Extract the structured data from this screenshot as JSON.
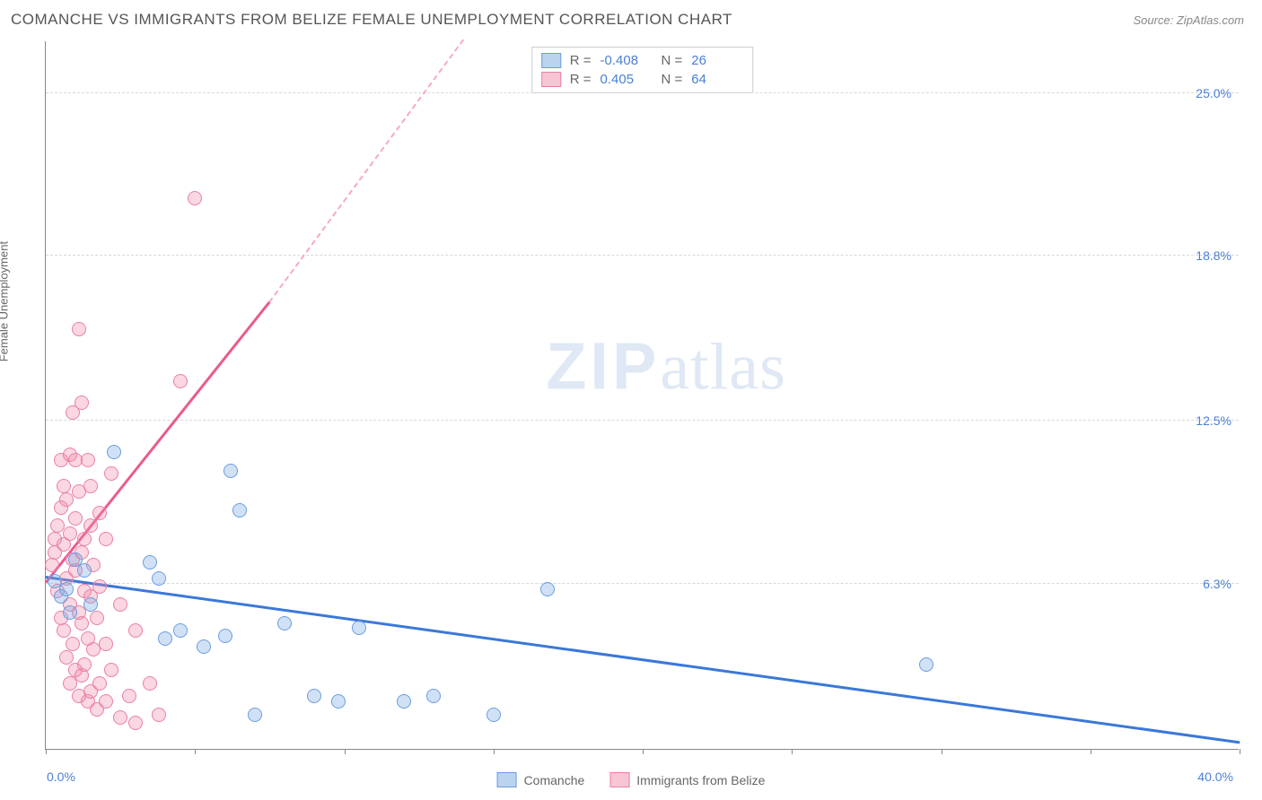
{
  "header": {
    "title": "COMANCHE VS IMMIGRANTS FROM BELIZE FEMALE UNEMPLOYMENT CORRELATION CHART",
    "source": "Source: ZipAtlas.com"
  },
  "chart": {
    "type": "scatter",
    "ylabel": "Female Unemployment",
    "xlim": [
      0,
      40
    ],
    "ylim": [
      0,
      27
    ],
    "x_ticks": [
      0,
      5,
      10,
      15,
      20,
      25,
      30,
      35,
      40
    ],
    "y_gridlines": [
      6.3,
      12.5,
      18.8,
      25.0
    ],
    "y_tick_labels": [
      "6.3%",
      "12.5%",
      "18.8%",
      "25.0%"
    ],
    "x_left_label": "0.0%",
    "x_right_label": "40.0%",
    "background_color": "#ffffff",
    "grid_color": "#d8d8d8",
    "axis_color": "#888888",
    "watermark": "ZIPatlas",
    "series": [
      {
        "name": "Comanche",
        "color_fill": "rgba(122,168,226,0.35)",
        "color_stroke": "#6a9de0",
        "reg_color": "#3a78d8",
        "R": "-0.408",
        "N": "26",
        "regression": {
          "x1": 0,
          "y1": 6.5,
          "x2": 40,
          "y2": 0.2
        },
        "points": [
          [
            0.3,
            6.4
          ],
          [
            0.5,
            5.8
          ],
          [
            0.7,
            6.1
          ],
          [
            0.8,
            5.2
          ],
          [
            1.0,
            7.2
          ],
          [
            1.3,
            6.8
          ],
          [
            1.5,
            5.5
          ],
          [
            2.3,
            11.3
          ],
          [
            3.5,
            7.1
          ],
          [
            3.8,
            6.5
          ],
          [
            4.0,
            4.2
          ],
          [
            4.5,
            4.5
          ],
          [
            5.3,
            3.9
          ],
          [
            6.2,
            10.6
          ],
          [
            6.0,
            4.3
          ],
          [
            6.5,
            9.1
          ],
          [
            7.0,
            1.3
          ],
          [
            8.0,
            4.8
          ],
          [
            9.0,
            2.0
          ],
          [
            9.8,
            1.8
          ],
          [
            10.5,
            4.6
          ],
          [
            12.0,
            1.8
          ],
          [
            13.0,
            2.0
          ],
          [
            15.0,
            1.3
          ],
          [
            16.8,
            6.1
          ],
          [
            29.5,
            3.2
          ]
        ]
      },
      {
        "name": "Immigrants from Belize",
        "color_fill": "rgba(240,140,170,0.35)",
        "color_stroke": "#ea7fa6",
        "reg_color": "#ea5a8f",
        "R": "0.405",
        "N": "64",
        "regression": {
          "x1": 0,
          "y1": 6.3,
          "x2": 7.5,
          "y2": 17.0
        },
        "regression_ext": {
          "x1": 7.5,
          "y1": 17.0,
          "x2": 14.0,
          "y2": 27.0
        },
        "points": [
          [
            0.2,
            7.0
          ],
          [
            0.3,
            7.5
          ],
          [
            0.3,
            8.0
          ],
          [
            0.4,
            6.0
          ],
          [
            0.4,
            8.5
          ],
          [
            0.5,
            5.0
          ],
          [
            0.5,
            9.2
          ],
          [
            0.5,
            11.0
          ],
          [
            0.6,
            4.5
          ],
          [
            0.6,
            7.8
          ],
          [
            0.6,
            10.0
          ],
          [
            0.7,
            3.5
          ],
          [
            0.7,
            6.5
          ],
          [
            0.7,
            9.5
          ],
          [
            0.8,
            2.5
          ],
          [
            0.8,
            5.5
          ],
          [
            0.8,
            8.2
          ],
          [
            0.8,
            11.2
          ],
          [
            0.9,
            4.0
          ],
          [
            0.9,
            7.2
          ],
          [
            0.9,
            12.8
          ],
          [
            1.0,
            3.0
          ],
          [
            1.0,
            6.8
          ],
          [
            1.0,
            8.8
          ],
          [
            1.0,
            11.0
          ],
          [
            1.1,
            2.0
          ],
          [
            1.1,
            5.2
          ],
          [
            1.1,
            9.8
          ],
          [
            1.1,
            16.0
          ],
          [
            1.2,
            2.8
          ],
          [
            1.2,
            4.8
          ],
          [
            1.2,
            7.5
          ],
          [
            1.2,
            13.2
          ],
          [
            1.3,
            3.2
          ],
          [
            1.3,
            6.0
          ],
          [
            1.3,
            8.0
          ],
          [
            1.4,
            1.8
          ],
          [
            1.4,
            4.2
          ],
          [
            1.4,
            11.0
          ],
          [
            1.5,
            2.2
          ],
          [
            1.5,
            5.8
          ],
          [
            1.5,
            8.5
          ],
          [
            1.5,
            10.0
          ],
          [
            1.6,
            3.8
          ],
          [
            1.6,
            7.0
          ],
          [
            1.7,
            1.5
          ],
          [
            1.7,
            5.0
          ],
          [
            1.8,
            2.5
          ],
          [
            1.8,
            6.2
          ],
          [
            1.8,
            9.0
          ],
          [
            2.0,
            1.8
          ],
          [
            2.0,
            4.0
          ],
          [
            2.0,
            8.0
          ],
          [
            2.2,
            3.0
          ],
          [
            2.2,
            10.5
          ],
          [
            2.5,
            1.2
          ],
          [
            2.5,
            5.5
          ],
          [
            2.8,
            2.0
          ],
          [
            3.0,
            4.5
          ],
          [
            3.0,
            1.0
          ],
          [
            3.5,
            2.5
          ],
          [
            3.8,
            1.3
          ],
          [
            4.5,
            14.0
          ],
          [
            5.0,
            21.0
          ]
        ]
      }
    ],
    "stats_box": {
      "rows": [
        {
          "swatch": "blue",
          "R_label": "R =",
          "R": "-0.408",
          "N_label": "N =",
          "N": "26"
        },
        {
          "swatch": "pink",
          "R_label": "R =",
          "R": "0.405",
          "N_label": "N =",
          "N": "64"
        }
      ]
    },
    "legend": [
      {
        "swatch": "blue",
        "label": "Comanche"
      },
      {
        "swatch": "pink",
        "label": "Immigrants from Belize"
      }
    ]
  }
}
